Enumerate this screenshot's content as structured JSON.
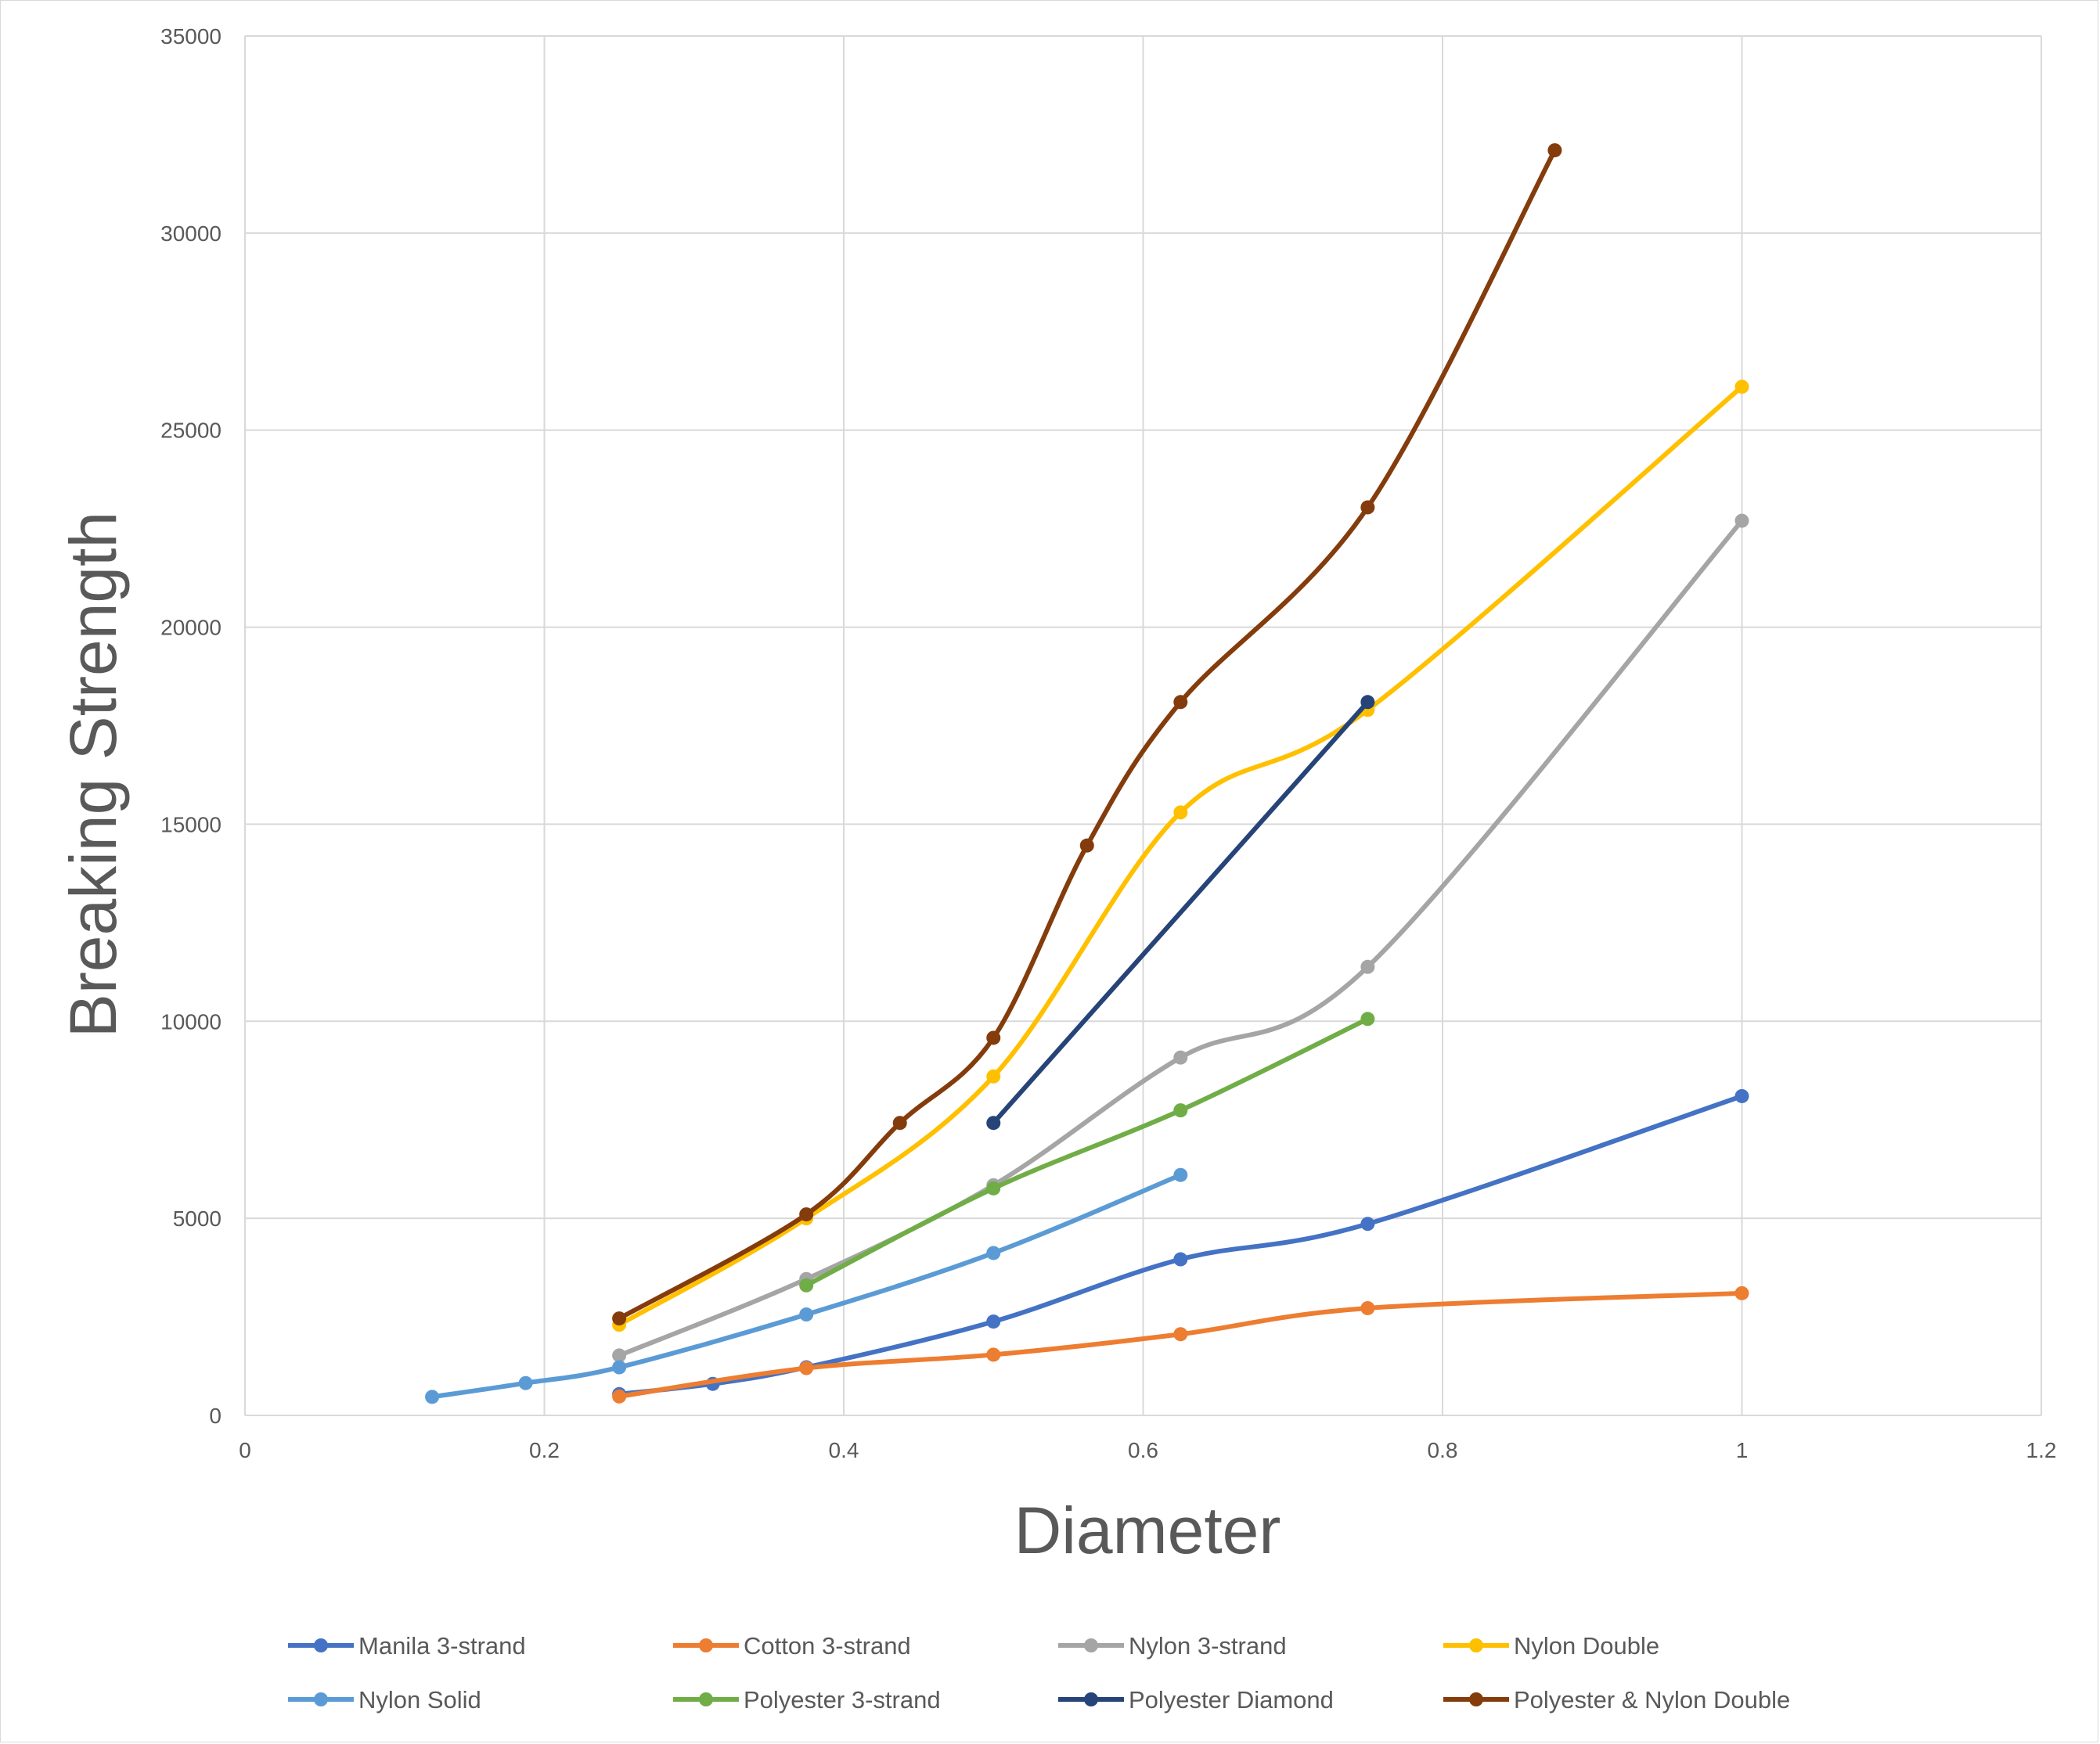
{
  "chart_data": {
    "type": "line",
    "title": "",
    "xlabel": "Diameter",
    "ylabel": "Breaking Strength",
    "xlim": [
      0,
      1.2
    ],
    "ylim": [
      0,
      35000
    ],
    "x_ticks": [
      "0",
      "0.2",
      "0.4",
      "0.6",
      "0.8",
      "1",
      "1.2"
    ],
    "y_ticks": [
      "0",
      "5000",
      "10000",
      "15000",
      "20000",
      "25000",
      "30000",
      "35000"
    ],
    "grid": true,
    "legend_position": "bottom",
    "smooth": true,
    "series": [
      {
        "name": "Manila 3-strand",
        "color": "#4472C4",
        "points": [
          [
            0.25,
            540
          ],
          [
            0.3125,
            800
          ],
          [
            0.375,
            1220
          ],
          [
            0.5,
            2380
          ],
          [
            0.625,
            3960
          ],
          [
            0.75,
            4860
          ],
          [
            1.0,
            8100
          ]
        ]
      },
      {
        "name": "Cotton 3-strand",
        "color": "#ED7D31",
        "points": [
          [
            0.25,
            480
          ],
          [
            0.375,
            1200
          ],
          [
            0.5,
            1540
          ],
          [
            0.625,
            2060
          ],
          [
            0.75,
            2720
          ],
          [
            1.0,
            3100
          ]
        ]
      },
      {
        "name": "Nylon 3-strand",
        "color": "#A5A5A5",
        "points": [
          [
            0.25,
            1520
          ],
          [
            0.375,
            3460
          ],
          [
            0.5,
            5840
          ],
          [
            0.625,
            9080
          ],
          [
            0.75,
            11380
          ],
          [
            1.0,
            22700
          ]
        ]
      },
      {
        "name": "Nylon Double",
        "color": "#FFC000",
        "points": [
          [
            0.25,
            2300
          ],
          [
            0.375,
            5000
          ],
          [
            0.5,
            8600
          ],
          [
            0.625,
            15300
          ],
          [
            0.75,
            17900
          ],
          [
            1.0,
            26100
          ]
        ]
      },
      {
        "name": "Nylon Solid",
        "color": "#5B9BD5",
        "points": [
          [
            0.125,
            470
          ],
          [
            0.1875,
            820
          ],
          [
            0.25,
            1220
          ],
          [
            0.375,
            2560
          ],
          [
            0.5,
            4120
          ],
          [
            0.625,
            6100
          ]
        ]
      },
      {
        "name": "Polyester 3-strand",
        "color": "#70AD47",
        "points": [
          [
            0.375,
            3300
          ],
          [
            0.5,
            5760
          ],
          [
            0.625,
            7740
          ],
          [
            0.75,
            10060
          ]
        ]
      },
      {
        "name": "Polyester Diamond",
        "color": "#264478",
        "points": [
          [
            0.5,
            7420
          ],
          [
            0.75,
            18100
          ]
        ]
      },
      {
        "name": "Polyester & Nylon Double",
        "color": "#843C0C",
        "points": [
          [
            0.25,
            2460
          ],
          [
            0.375,
            5100
          ],
          [
            0.4375,
            7420
          ],
          [
            0.5,
            9580
          ],
          [
            0.5625,
            14460
          ],
          [
            0.625,
            18100
          ],
          [
            0.75,
            23040
          ],
          [
            0.875,
            32100
          ]
        ]
      }
    ]
  }
}
